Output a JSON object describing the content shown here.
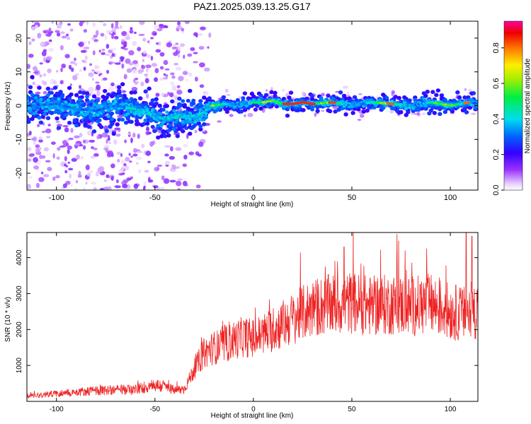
{
  "title": "PAZ1.2025.039.13.25.G17",
  "chart_data": [
    {
      "type": "heatmap",
      "title": "PAZ1.2025.039.13.25.G17",
      "xlabel": "Height of straight line (km)",
      "ylabel": "Frequency (Hz)",
      "xlim": [
        -115,
        114
      ],
      "ylim": [
        -25,
        25
      ],
      "xticks": [
        -100,
        -50,
        0,
        50,
        100
      ],
      "yticks": [
        -20,
        -10,
        0,
        10,
        20
      ],
      "colorbar": {
        "label": "Normalized spectral amplitude",
        "range": [
          0,
          0.95
        ],
        "ticks": [
          0.0,
          0.2,
          0.4,
          0.6,
          0.8
        ],
        "tick_labels": [
          "0.0",
          "0.2",
          "0.4",
          "0.6",
          "0.8"
        ],
        "colormap": "rainbow (white-violet-blue-cyan-green-yellow-red-magenta)"
      },
      "ridge": {
        "x": [
          -115,
          -100,
          -90,
          -80,
          -70,
          -60,
          -55,
          -50,
          -45,
          -40,
          -35,
          -30,
          -25,
          -22,
          -20,
          -15,
          -10,
          -5,
          0,
          5,
          10,
          15,
          20,
          25,
          30,
          40,
          50,
          60,
          70,
          80,
          90,
          100,
          110,
          114
        ],
        "y": [
          0.0,
          0.5,
          -1.0,
          -1.5,
          0.0,
          -1.0,
          -2.0,
          -3.0,
          -4.0,
          -3.5,
          -3.5,
          -3.0,
          -2.0,
          0.0,
          0.0,
          0.5,
          0.3,
          0.5,
          1.0,
          1.0,
          1.5,
          0.5,
          0.5,
          1.0,
          0.5,
          1.0,
          0.0,
          1.0,
          0.5,
          0.0,
          1.0,
          0.0,
          1.0,
          0.5
        ]
      }
    },
    {
      "type": "line",
      "xlabel": "Height of straight line (km)",
      "ylabel": "SNR (10 * v/v)",
      "xlim": [
        -115,
        114
      ],
      "ylim": [
        0,
        4700
      ],
      "xticks": [
        -100,
        -50,
        0,
        50,
        100
      ],
      "yticks": [
        1000,
        2000,
        3000,
        4000
      ],
      "color": "#ee2222",
      "trend": {
        "x": [
          -115,
          -100,
          -90,
          -80,
          -70,
          -60,
          -55,
          -50,
          -45,
          -40,
          -35,
          -30,
          -25,
          -20,
          -15,
          -10,
          -5,
          0,
          10,
          20,
          30,
          40,
          50,
          60,
          70,
          80,
          90,
          100,
          110,
          114
        ],
        "y": [
          150,
          220,
          260,
          300,
          320,
          330,
          400,
          450,
          420,
          300,
          350,
          900,
          1350,
          1500,
          1550,
          1700,
          1800,
          1750,
          2000,
          2300,
          2600,
          2700,
          2750,
          2650,
          2700,
          2650,
          2700,
          2500,
          2400,
          2600
        ]
      },
      "peaks": [
        {
          "x": 108,
          "y": 4700
        },
        {
          "x": 111,
          "y": 4600
        },
        {
          "x": 46,
          "y": 4300
        },
        {
          "x": 77,
          "y": 4200
        },
        {
          "x": 88,
          "y": 4250
        }
      ]
    }
  ]
}
